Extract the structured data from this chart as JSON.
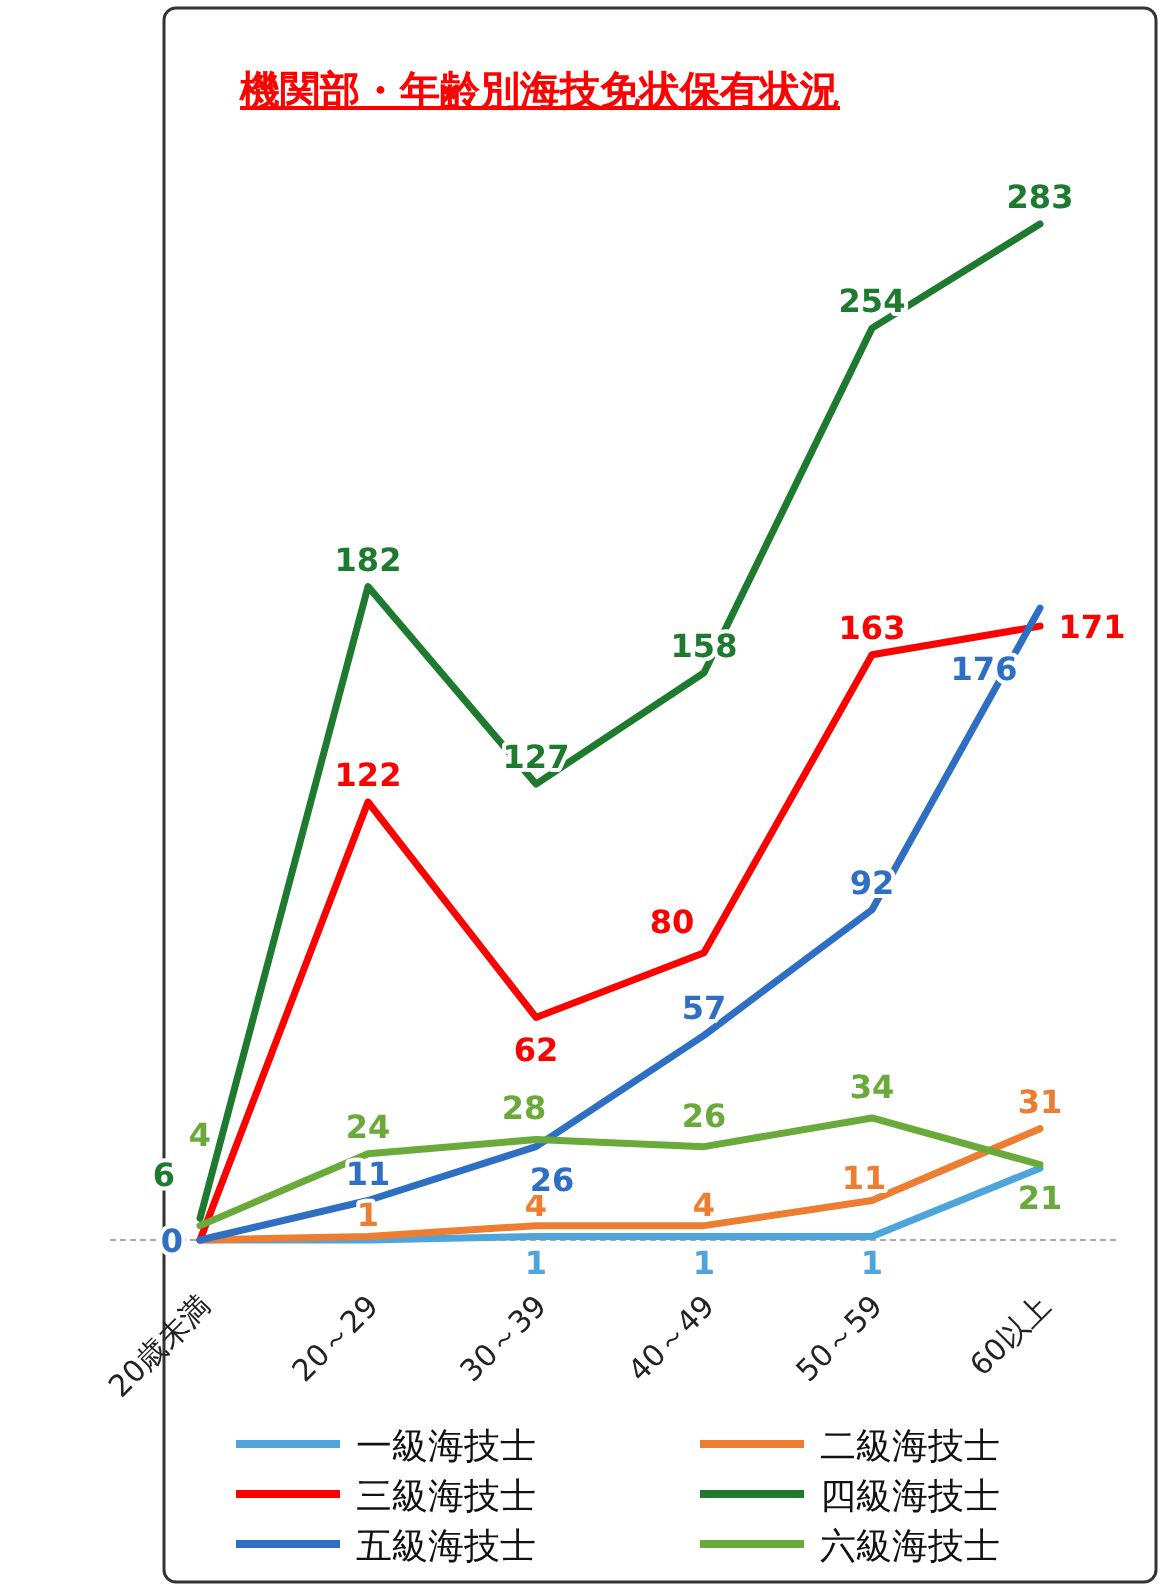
{
  "chart_data": {
    "type": "line",
    "title": "機関部・年齢別海技免状保有状況",
    "categories": [
      "20歳未満",
      "20～29",
      "30～39",
      "40～49",
      "50～59",
      "60以上"
    ],
    "series": [
      {
        "name": "一級海技士",
        "color": "#4ea5dc",
        "values": [
          0,
          0,
          1,
          1,
          1,
          20
        ],
        "value_labels": [
          null,
          null,
          "1",
          "1",
          "1",
          null
        ]
      },
      {
        "name": "二級海技士",
        "color": "#ed7d31",
        "values": [
          0,
          1,
          4,
          4,
          11,
          31
        ],
        "value_labels": [
          null,
          "1",
          "4",
          "4",
          "11",
          "31"
        ]
      },
      {
        "name": "三級海技士",
        "color": "#ff0000",
        "values": [
          0,
          122,
          62,
          80,
          163,
          171
        ],
        "value_labels": [
          null,
          "122",
          "62",
          "80",
          "163",
          "171"
        ]
      },
      {
        "name": "四級海技士",
        "color": "#1e7a2e",
        "values": [
          6,
          182,
          127,
          158,
          254,
          283
        ],
        "value_labels": [
          "6",
          "182",
          "127",
          "158",
          "254",
          "283"
        ]
      },
      {
        "name": "五級海技士",
        "color": "#2e6fc4",
        "values": [
          0,
          11,
          26,
          57,
          92,
          176
        ],
        "value_labels": [
          "0",
          "11",
          "26",
          "57",
          "92",
          "176"
        ]
      },
      {
        "name": "六級海技士",
        "color": "#6aaa3a",
        "values": [
          4,
          24,
          28,
          26,
          34,
          21
        ],
        "value_labels": [
          "4",
          "24",
          "28",
          "26",
          "34",
          "21"
        ]
      }
    ],
    "legend": "bottom",
    "marker": "none"
  }
}
